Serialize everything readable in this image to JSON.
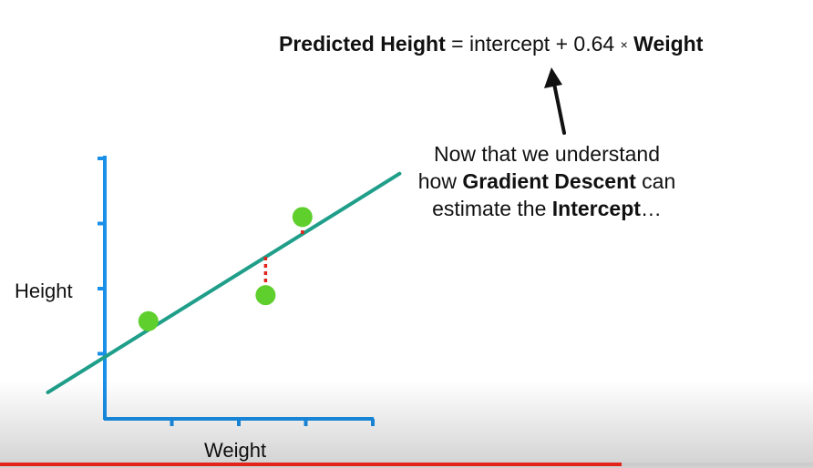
{
  "equation": {
    "lhs": "Predicted Height",
    "equals": "=",
    "intercept": "intercept",
    "plus": "+",
    "slope": "0.64",
    "times": "×",
    "rhs": "Weight"
  },
  "caption": {
    "line1": "Now that we understand",
    "line2_pre": "how ",
    "line2_bold": "Gradient Descent",
    "line2_post": " can",
    "line3_pre": "estimate the ",
    "line3_bold": "Intercept",
    "line3_post": "…"
  },
  "chart_data": {
    "type": "scatter",
    "xlabel": "Weight",
    "ylabel": "Height",
    "xlim": [
      0,
      4
    ],
    "ylim": [
      0,
      4
    ],
    "x_ticks": [
      1,
      2,
      3,
      4
    ],
    "y_ticks": [
      1,
      2,
      3,
      4
    ],
    "grid": false,
    "points": [
      {
        "x": 0.65,
        "y": 1.5
      },
      {
        "x": 2.4,
        "y": 1.9
      },
      {
        "x": 2.95,
        "y": 3.1
      }
    ],
    "fit_line": {
      "slope": 0.64,
      "intercept": 0.95,
      "x_range": [
        -0.85,
        4.4
      ]
    },
    "residuals": [
      {
        "x": 2.4,
        "y_point": 1.9,
        "y_line": 2.49
      },
      {
        "x": 2.95,
        "y_point": 3.1,
        "y_line": 2.84
      }
    ],
    "colors": {
      "axis": "#1a8fe8",
      "line": "#1f9e8a",
      "point": "#5ecf2c",
      "residual": "#e0251d",
      "arrow": "#111111"
    }
  },
  "player": {
    "progress": 0.765,
    "progress_color": "#e3241b"
  }
}
